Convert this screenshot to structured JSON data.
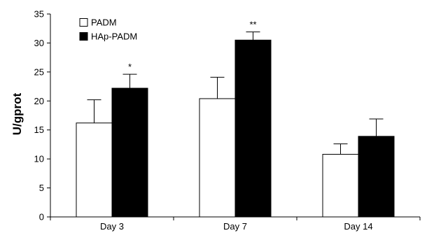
{
  "chart_data": {
    "type": "bar",
    "title": "",
    "xlabel": "",
    "ylabel": "U/gprot",
    "ylim": [
      0,
      35
    ],
    "yticks": [
      0,
      5,
      10,
      15,
      20,
      25,
      30,
      35
    ],
    "grid": false,
    "legend_position": "top-left",
    "categories": [
      "Day 3",
      "Day 7",
      "Day 14"
    ],
    "series": [
      {
        "name": "PADM",
        "fill": "#ffffff",
        "stroke": "#000000",
        "values": [
          16.2,
          20.4,
          10.8
        ],
        "errors": [
          4.0,
          3.7,
          1.8
        ]
      },
      {
        "name": "HAp-PADM",
        "fill": "#000000",
        "stroke": "#000000",
        "values": [
          22.2,
          30.5,
          13.9
        ],
        "errors": [
          2.4,
          1.4,
          3.0
        ]
      }
    ],
    "annotations": [
      {
        "category": "Day 3",
        "series": "HAp-PADM",
        "text": "*"
      },
      {
        "category": "Day 7",
        "series": "HAp-PADM",
        "text": "**"
      }
    ]
  }
}
